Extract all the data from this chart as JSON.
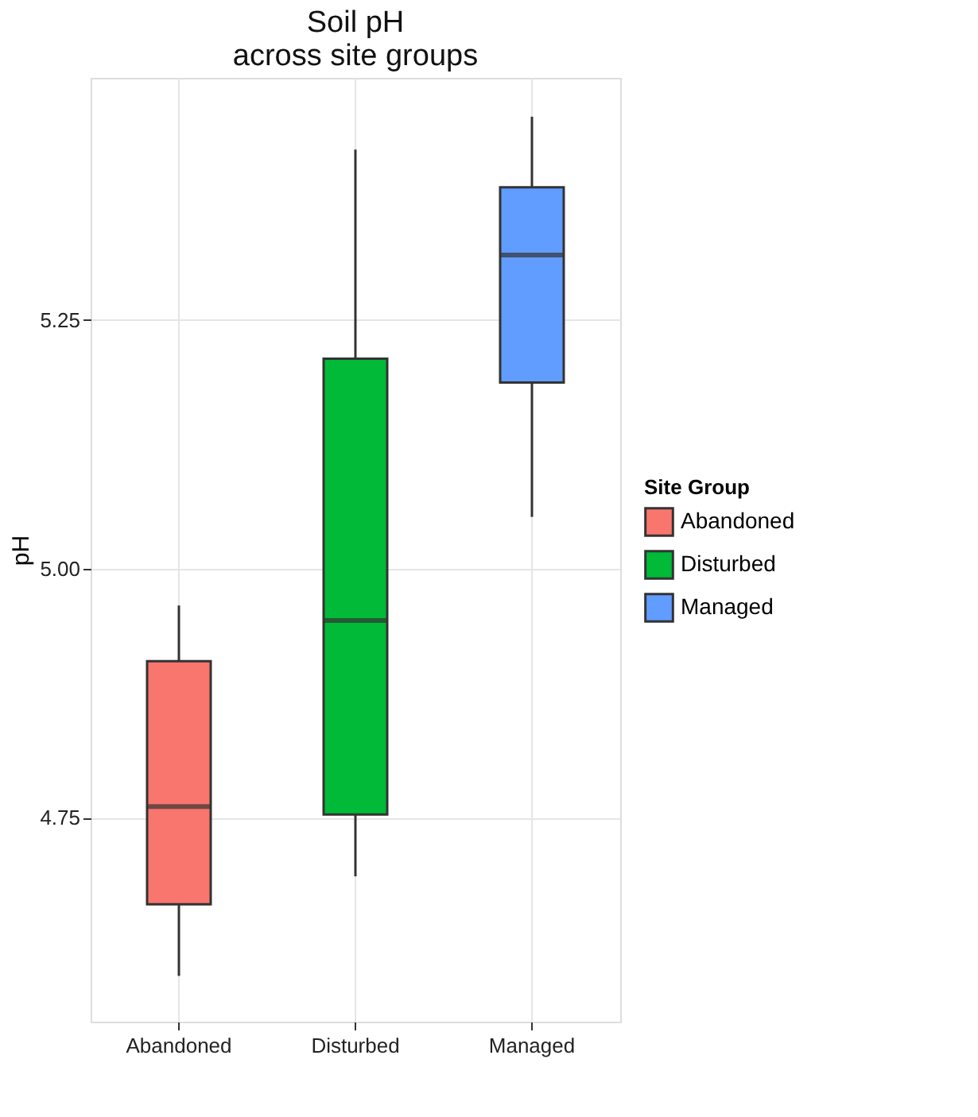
{
  "chart_data": {
    "type": "box",
    "title": "Soil pH\nacross site groups",
    "ylabel": "pH",
    "legend_title": "Site Group",
    "categories": [
      "Abandoned",
      "Disturbed",
      "Managed"
    ],
    "series": [
      {
        "name": "Abandoned",
        "color": "#f8766d",
        "x": [
          "Abandoned"
        ],
        "boxes": [
          {
            "low": 4.591,
            "q1": 4.663,
            "median": 4.761,
            "q3": 4.907,
            "high": 4.963
          }
        ]
      },
      {
        "name": "Disturbed",
        "color": "#00ba38",
        "x": [
          "Disturbed"
        ],
        "boxes": [
          {
            "low": 4.691,
            "q1": 4.753,
            "median": 4.948,
            "q3": 5.211,
            "high": 5.421
          }
        ]
      },
      {
        "name": "Managed",
        "color": "#619cff",
        "x": [
          "Managed"
        ],
        "boxes": [
          {
            "low": 5.052,
            "q1": 5.187,
            "median": 5.315,
            "q3": 5.383,
            "high": 5.454
          }
        ]
      }
    ],
    "ylim": [
      4.545,
      5.493
    ],
    "yticks": [
      4.75,
      {
        "value": 5.0,
        "label": "5.00"
      },
      5.25
    ],
    "grid": true,
    "legend": "right"
  }
}
